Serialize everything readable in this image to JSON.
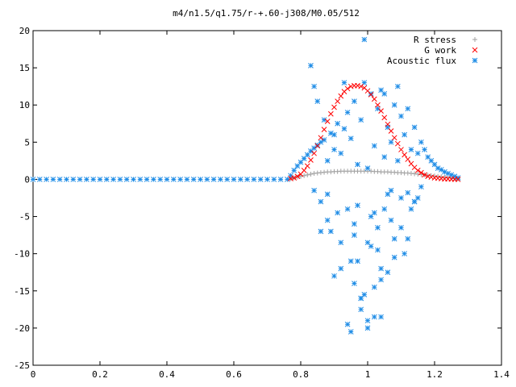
{
  "chart_data": {
    "type": "scatter",
    "title": "m4/n1.5/q1.75/r-+.60-j308/M0.05/512",
    "xlabel": "",
    "ylabel": "",
    "xlim": [
      0,
      1.4
    ],
    "ylim": [
      -25,
      20
    ],
    "x_ticks": [
      "0",
      "0.2",
      "0.4",
      "0.6",
      "0.8",
      "1",
      "1.2",
      "1.4"
    ],
    "y_ticks": [
      "20",
      "15",
      "10",
      "5",
      "0",
      "-5",
      "-10",
      "-15",
      "-20",
      "-25"
    ],
    "legend_position": "top-right",
    "series": [
      {
        "name": "R stress",
        "marker": "plus",
        "color": "#a0a0a0",
        "x": [
          0.77,
          0.78,
          0.79,
          0.8,
          0.81,
          0.82,
          0.83,
          0.84,
          0.85,
          0.86,
          0.87,
          0.88,
          0.89,
          0.9,
          0.91,
          0.92,
          0.93,
          0.94,
          0.95,
          0.96,
          0.97,
          0.98,
          0.99,
          1.0,
          1.01,
          1.02,
          1.03,
          1.04,
          1.05,
          1.06,
          1.07,
          1.08,
          1.09,
          1.1,
          1.11,
          1.12,
          1.13,
          1.14,
          1.15,
          1.16,
          1.17,
          1.18,
          1.19,
          1.2,
          1.21,
          1.22,
          1.23,
          1.24,
          1.25,
          1.26,
          1.27
        ],
        "y": [
          0.1,
          0.2,
          0.3,
          0.4,
          0.5,
          0.6,
          0.7,
          0.8,
          0.85,
          0.9,
          0.95,
          1.0,
          1.0,
          1.05,
          1.05,
          1.1,
          1.1,
          1.1,
          1.1,
          1.1,
          1.1,
          1.1,
          1.1,
          1.1,
          1.1,
          1.05,
          1.05,
          1.0,
          1.0,
          1.0,
          0.95,
          0.95,
          0.9,
          0.9,
          0.85,
          0.85,
          0.8,
          0.75,
          0.7,
          0.65,
          0.6,
          0.55,
          0.5,
          0.45,
          0.4,
          0.35,
          0.3,
          0.25,
          0.2,
          0.1,
          0.05
        ]
      },
      {
        "name": "G work",
        "marker": "cross",
        "color": "#ff0000",
        "x": [
          0.77,
          0.78,
          0.79,
          0.8,
          0.81,
          0.82,
          0.83,
          0.84,
          0.85,
          0.86,
          0.87,
          0.88,
          0.89,
          0.9,
          0.91,
          0.92,
          0.93,
          0.94,
          0.95,
          0.96,
          0.97,
          0.98,
          0.99,
          1.0,
          1.01,
          1.02,
          1.03,
          1.04,
          1.05,
          1.06,
          1.07,
          1.08,
          1.09,
          1.1,
          1.11,
          1.12,
          1.13,
          1.14,
          1.15,
          1.16,
          1.17,
          1.18,
          1.19,
          1.2,
          1.21,
          1.22,
          1.23,
          1.24,
          1.25,
          1.26,
          1.27
        ],
        "y": [
          0.1,
          0.2,
          0.4,
          0.7,
          1.2,
          1.8,
          2.6,
          3.5,
          4.5,
          5.6,
          6.7,
          7.8,
          8.8,
          9.7,
          10.5,
          11.2,
          11.8,
          12.2,
          12.5,
          12.6,
          12.6,
          12.5,
          12.3,
          11.9,
          11.4,
          10.8,
          10.0,
          9.2,
          8.3,
          7.4,
          6.5,
          5.6,
          4.8,
          4.0,
          3.3,
          2.7,
          2.1,
          1.6,
          1.2,
          0.9,
          0.6,
          0.4,
          0.3,
          0.2,
          0.15,
          0.1,
          0.05,
          0.05,
          0.02,
          0.01,
          0.0
        ]
      },
      {
        "name": "Acoustic flux",
        "marker": "star",
        "color": "#1e8ce6",
        "x": [
          0.0,
          0.02,
          0.04,
          0.06,
          0.08,
          0.1,
          0.12,
          0.14,
          0.16,
          0.18,
          0.2,
          0.22,
          0.24,
          0.26,
          0.28,
          0.3,
          0.32,
          0.34,
          0.36,
          0.38,
          0.4,
          0.42,
          0.44,
          0.46,
          0.48,
          0.5,
          0.52,
          0.54,
          0.56,
          0.58,
          0.6,
          0.62,
          0.64,
          0.66,
          0.68,
          0.7,
          0.72,
          0.74,
          0.76,
          0.77,
          0.78,
          0.79,
          0.8,
          0.81,
          0.82,
          0.83,
          0.84,
          0.85,
          0.86,
          0.87,
          0.88,
          0.89,
          0.9,
          0.91,
          0.92,
          0.93,
          0.94,
          0.95,
          0.96,
          0.97,
          0.98,
          0.99,
          1.0,
          1.01,
          1.02,
          1.03,
          1.04,
          1.05,
          1.06,
          1.07,
          1.08,
          1.09,
          1.1,
          1.11,
          1.12,
          1.13,
          1.14,
          1.15,
          1.16,
          1.17,
          1.18,
          1.19,
          1.2,
          1.21,
          1.22,
          1.23,
          1.24,
          1.25,
          1.26,
          1.27,
          0.83,
          0.84,
          0.85,
          0.86,
          0.87,
          0.88,
          0.89,
          0.9,
          0.91,
          0.92,
          0.93,
          0.94,
          0.95,
          0.96,
          0.97,
          0.98,
          0.99,
          1.0,
          1.01,
          1.02,
          1.03,
          1.04,
          1.05,
          1.06,
          1.07,
          1.08,
          1.09,
          1.1,
          1.11,
          1.12,
          1.13,
          1.14,
          1.15,
          1.16,
          0.84,
          0.86,
          0.88,
          0.9,
          0.92,
          0.94,
          0.96,
          0.98,
          1.0,
          1.02,
          1.04,
          1.06,
          1.08,
          1.1,
          1.12,
          1.14,
          0.95,
          0.97,
          0.99,
          1.01,
          1.03,
          1.05,
          1.07,
          0.96,
          0.98,
          1.0,
          1.02,
          1.04
        ],
        "y": [
          0,
          0,
          0,
          0,
          0,
          0,
          0,
          0,
          0,
          0,
          0,
          0,
          0,
          0,
          0,
          0,
          0,
          0,
          0,
          0,
          0,
          0,
          0,
          0,
          0,
          0,
          0,
          0,
          0,
          0,
          0,
          0,
          0,
          0,
          0,
          0,
          0,
          0,
          0,
          0.5,
          1.2,
          1.8,
          2.3,
          2.8,
          3.3,
          3.8,
          4.2,
          4.6,
          5.0,
          5.3,
          2.5,
          6.2,
          4.0,
          7.5,
          3.5,
          6.8,
          9.0,
          5.5,
          10.5,
          2.0,
          8.0,
          13.0,
          1.5,
          11.5,
          4.5,
          9.5,
          12.0,
          3.0,
          7.0,
          5.0,
          10.0,
          2.5,
          8.5,
          6.0,
          9.5,
          4.0,
          7.0,
          3.5,
          5.0,
          4.0,
          3.0,
          2.5,
          2.0,
          1.5,
          1.3,
          1.0,
          0.8,
          0.6,
          0.4,
          0.2,
          15.3,
          -1.5,
          10.5,
          -3.0,
          8.0,
          -2.0,
          -7.0,
          6.0,
          -4.5,
          -8.5,
          13.0,
          -4.0,
          -11.0,
          -6.0,
          -3.5,
          -16.0,
          18.8,
          -20.0,
          -5.0,
          -18.5,
          -9.5,
          -13.5,
          11.5,
          -2.0,
          -5.5,
          -8.0,
          12.5,
          -6.5,
          -10.0,
          -1.8,
          -4.0,
          -3.0,
          -2.5,
          -1.0,
          12.5,
          -7.0,
          -5.5,
          -13.0,
          -12.0,
          -19.5,
          -14.0,
          -17.5,
          -19.0,
          -14.5,
          -18.5,
          -12.5,
          -10.5,
          -2.5,
          -8.0,
          -3.0,
          -20.5,
          -11.0,
          -15.5,
          -9.0,
          -6.5,
          -4.0,
          -1.5,
          -7.5,
          -16.0,
          -8.5,
          -4.5,
          -12.0
        ]
      }
    ]
  }
}
